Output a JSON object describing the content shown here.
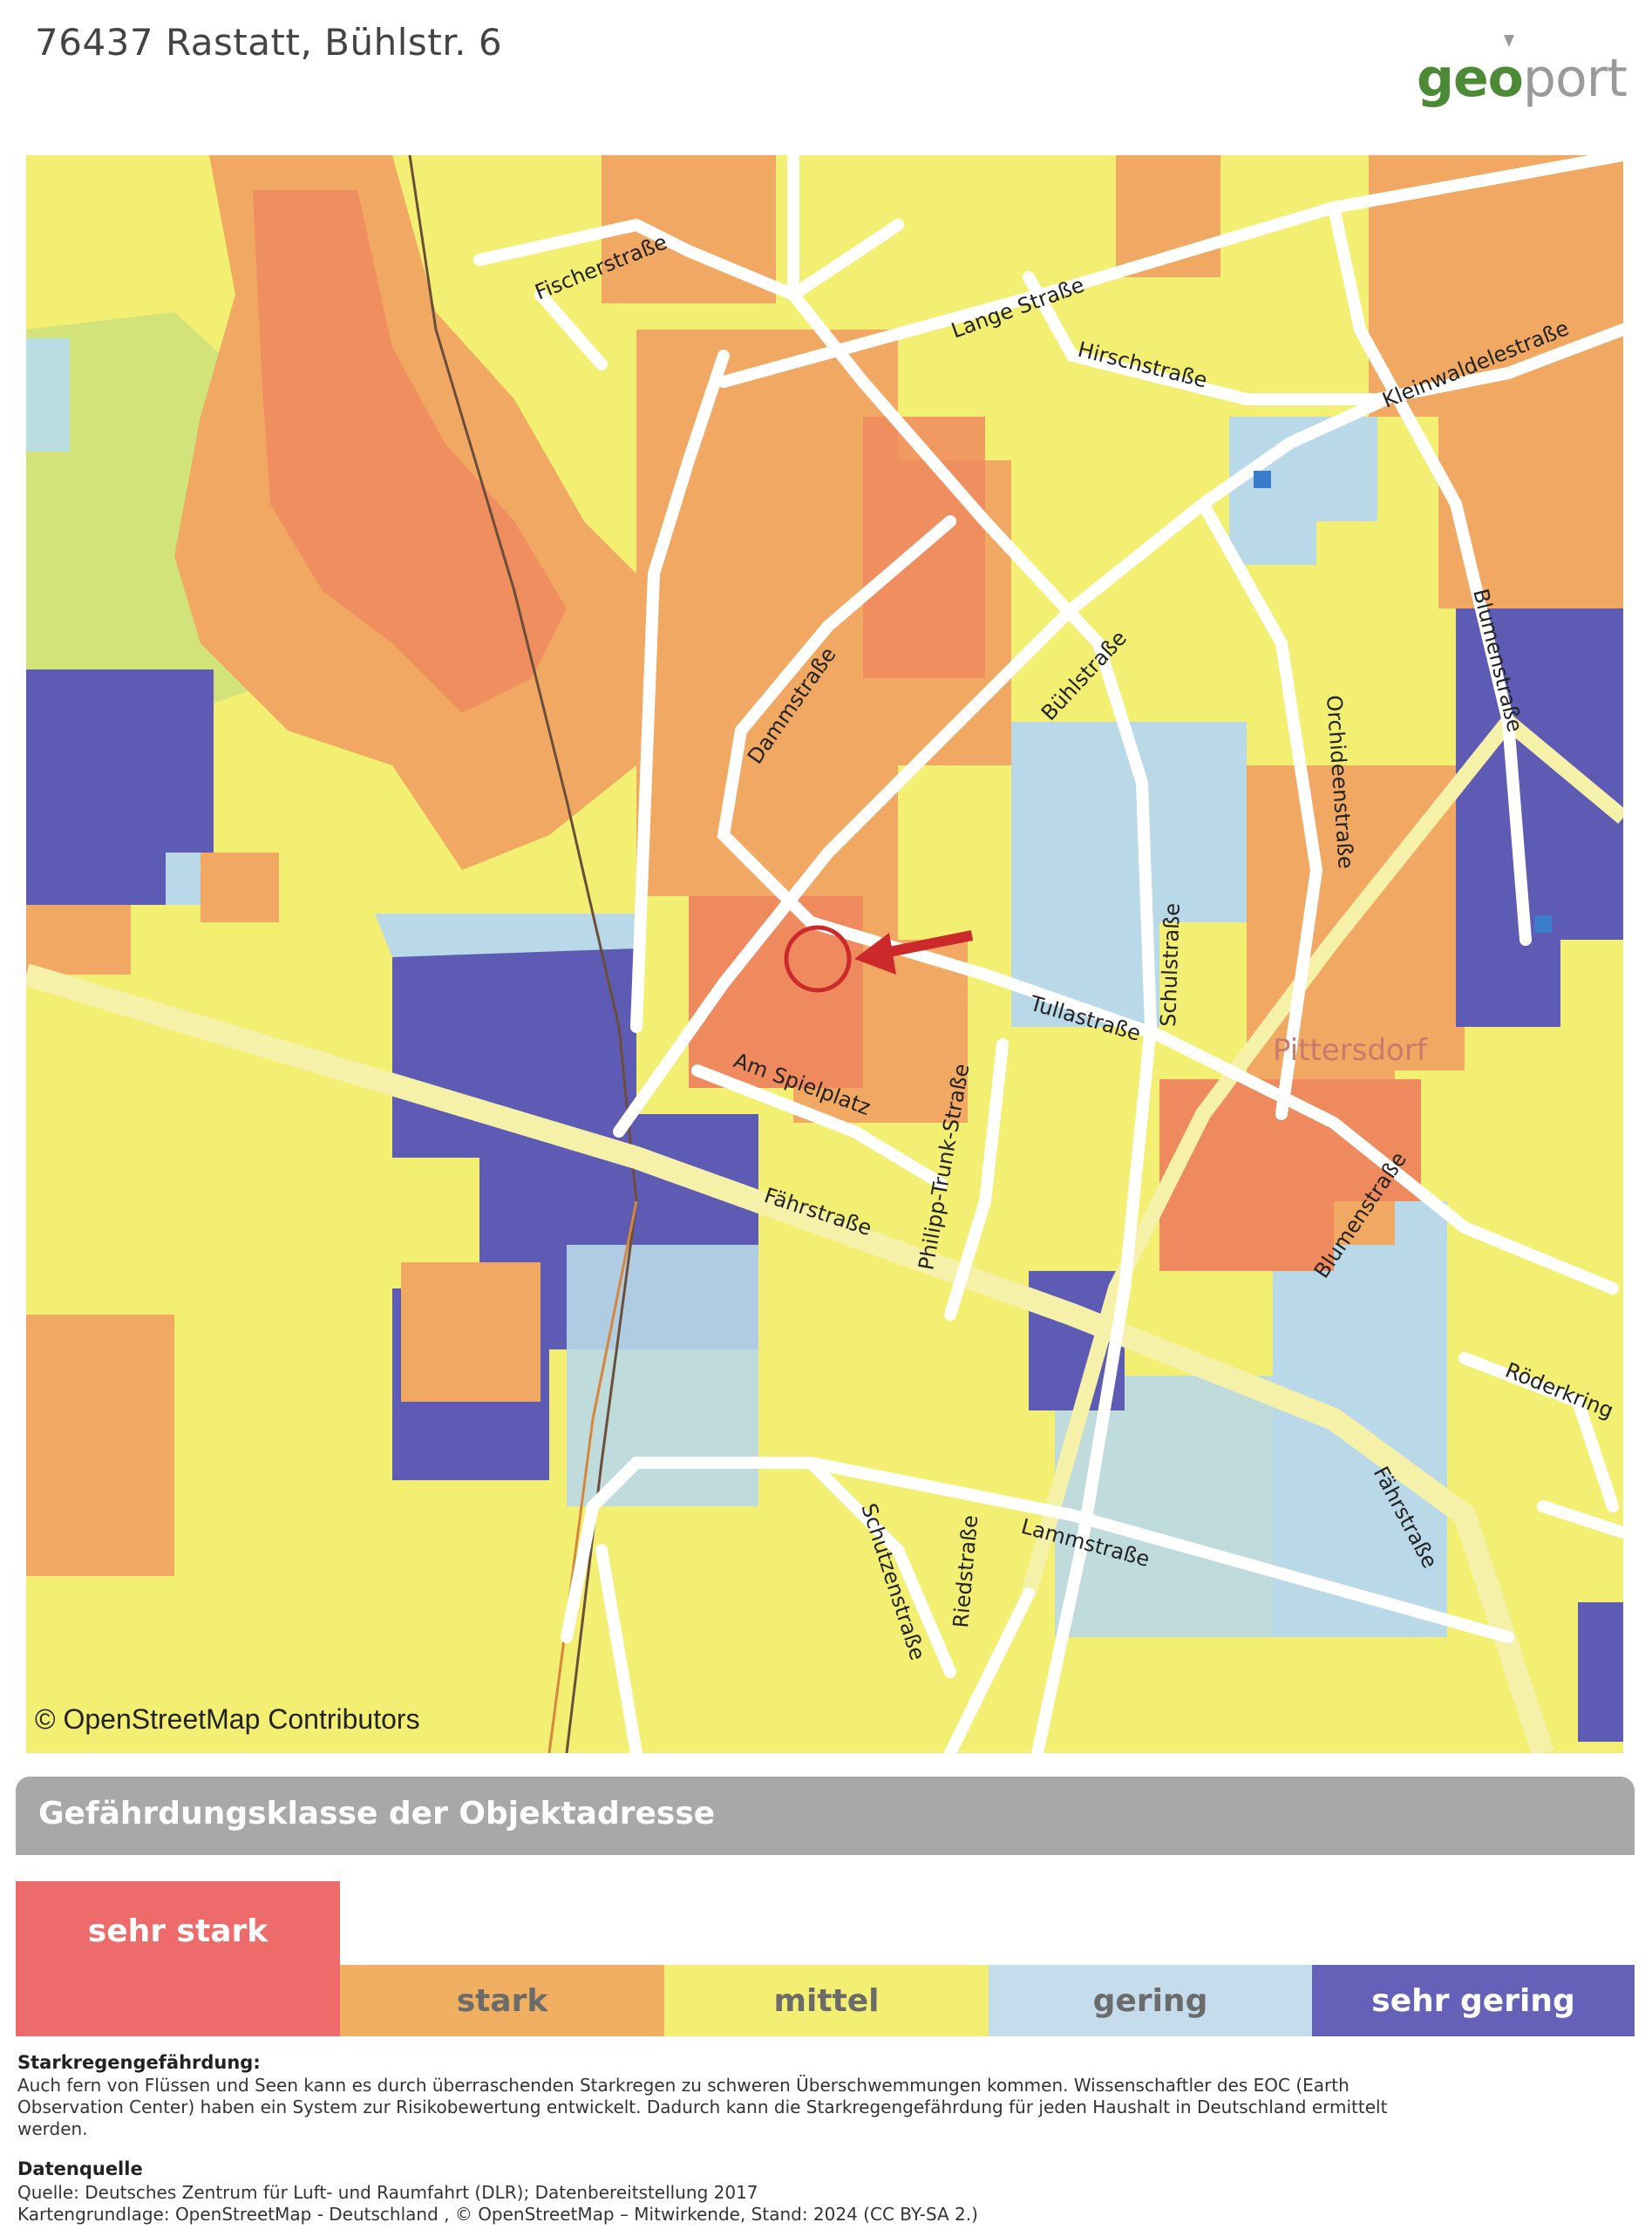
{
  "address": "76437 Rastatt, Bühlstr. 6",
  "logo": {
    "part1": "geo",
    "part2": "port"
  },
  "map": {
    "attribution": "© OpenStreetMap Contributors",
    "place_label": "Pittersdorf",
    "marker": {
      "type": "red-circle-with-arrow",
      "color": "#cc2a2a"
    },
    "streets": {
      "fischerstrasse": "Fischerstraße",
      "lange": "Lange Straße",
      "hirsch": "Hirschstraße",
      "kleinwald": "Kleinwaldelestraße",
      "damm": "Dammstraße",
      "buehl": "Bühlstraße",
      "orchideen": "Orchideenstraße",
      "blumen1": "Blumenstraße",
      "schul": "Schulstraße",
      "tulla": "Tullastraße",
      "spielplatz": "Am Spielplatz",
      "philipp": "Philipp-Trunk-Straße",
      "faehr1": "Fährstraße",
      "blumen2": "Blumenstraße",
      "roeder": "Röderkring",
      "faehr2": "Fährstraße",
      "schuetzen": "Schutzenstraße",
      "ried": "Riedstraße",
      "lamm": "Lammstraße"
    }
  },
  "legend": {
    "title": "Gefährdungsklasse der Objektadresse",
    "classes": [
      {
        "label": "sehr stark",
        "color": "#ee6b6b",
        "selected": true
      },
      {
        "label": "stark",
        "color": "#f1b061",
        "selected": false
      },
      {
        "label": "mittel",
        "color": "#f3ef72",
        "selected": false
      },
      {
        "label": "gering",
        "color": "#c4dceb",
        "selected": false
      },
      {
        "label": "sehr gering",
        "color": "#6560b8",
        "selected": false
      }
    ]
  },
  "info": {
    "heading1": "Starkregengefährdung:",
    "text1a": "Auch fern von Flüssen und Seen kann es durch überraschenden Starkregen zu schweren Überschwemmungen kommen. Wissenschaftler des EOC (Earth",
    "text1b": "Observation Center) haben ein System zur Risikobewertung entwickelt. Dadurch kann die Starkregengefährdung für jeden Haushalt in Deutschland ermittelt",
    "text1c": "werden.",
    "heading2": "Datenquelle",
    "source1": "Quelle: Deutsches Zentrum für Luft- und Raumfahrt (DLR); Datenbereitstellung 2017",
    "source2": "Kartengrundlage: OpenStreetMap - Deutschland , © OpenStreetMap – Mitwirkende, Stand: 2024 (CC BY-SA 2.)"
  }
}
